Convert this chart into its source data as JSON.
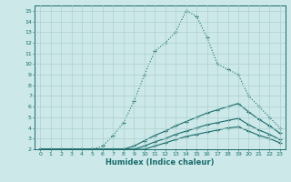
{
  "xlabel": "Humidex (Indice chaleur)",
  "background_color": "#cce8e8",
  "grid_color": "#aed0d0",
  "line_color": "#1a6b6b",
  "xlim": [
    -0.5,
    23.5
  ],
  "ylim": [
    2,
    15.5
  ],
  "xticks": [
    0,
    1,
    2,
    3,
    4,
    5,
    6,
    7,
    8,
    9,
    10,
    11,
    12,
    13,
    14,
    15,
    16,
    17,
    18,
    19,
    20,
    21,
    22,
    23
  ],
  "yticks": [
    2,
    3,
    4,
    5,
    6,
    7,
    8,
    9,
    10,
    11,
    12,
    13,
    14,
    15
  ],
  "series": [
    {
      "x": [
        0,
        1,
        2,
        3,
        4,
        5,
        6,
        7,
        8,
        9,
        10,
        11,
        12,
        13,
        14,
        15,
        16,
        17,
        18,
        19,
        20,
        21,
        22,
        23
      ],
      "y": [
        2,
        2,
        2,
        2,
        2,
        2,
        2.3,
        3.3,
        4.5,
        6.5,
        9,
        11.2,
        12,
        13,
        15,
        14.5,
        12.5,
        10,
        9.5,
        9,
        7,
        6,
        5,
        4
      ]
    },
    {
      "x": [
        0,
        1,
        2,
        3,
        4,
        5,
        6,
        7,
        8,
        9,
        10,
        11,
        12,
        13,
        14,
        15,
        16,
        17,
        18,
        19,
        20,
        21,
        22,
        23
      ],
      "y": [
        2,
        2,
        2,
        2,
        2,
        2,
        2,
        2,
        2,
        2.3,
        2.8,
        3.3,
        3.7,
        4.2,
        4.6,
        5.0,
        5.4,
        5.7,
        6.0,
        6.3,
        5.5,
        4.8,
        4.2,
        3.5
      ]
    },
    {
      "x": [
        0,
        1,
        2,
        3,
        4,
        5,
        6,
        7,
        8,
        9,
        10,
        11,
        12,
        13,
        14,
        15,
        16,
        17,
        18,
        19,
        20,
        21,
        22,
        23
      ],
      "y": [
        2,
        2,
        2,
        2,
        2,
        2,
        2,
        2,
        2,
        2,
        2.3,
        2.7,
        3.0,
        3.4,
        3.7,
        4.0,
        4.3,
        4.5,
        4.7,
        4.9,
        4.3,
        3.8,
        3.4,
        2.9
      ]
    },
    {
      "x": [
        0,
        1,
        2,
        3,
        4,
        5,
        6,
        7,
        8,
        9,
        10,
        11,
        12,
        13,
        14,
        15,
        16,
        17,
        18,
        19,
        20,
        21,
        22,
        23
      ],
      "y": [
        2,
        2,
        2,
        2,
        2,
        2,
        2,
        2,
        2,
        2,
        2,
        2.3,
        2.6,
        2.9,
        3.2,
        3.4,
        3.6,
        3.8,
        4.0,
        4.1,
        3.7,
        3.3,
        3.0,
        2.6
      ]
    }
  ]
}
